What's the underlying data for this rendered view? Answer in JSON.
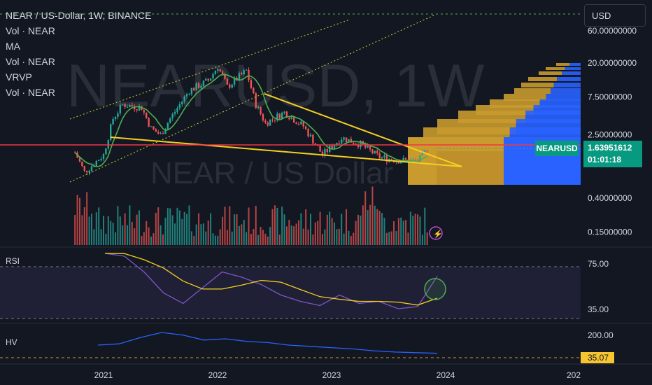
{
  "header": {
    "title": "NEAR / US-Dollar, 1W, BINANCE",
    "indicators": [
      "Vol · NEAR",
      "MA",
      "Vol · NEAR",
      "VRVP",
      "Vol · NEAR"
    ]
  },
  "currency_button": "USD",
  "watermark": {
    "symbol": "NEARUSD, 1W",
    "name": "NEAR / US Dollar"
  },
  "price_badge": {
    "symbol": "NEARUSD",
    "price": "1.63951612",
    "countdown": "01:01:18"
  },
  "rsi_label": "RSI",
  "hv_label": "HV",
  "colors": {
    "background": "#131722",
    "up": "#26a69a",
    "down": "#ef5350",
    "ma": "#4caf50",
    "trendline": "#f5d020",
    "channel": "#c6d33a",
    "rsi": "#7e57c2",
    "rsi_ma": "#f5d020",
    "hv": "#2962ff",
    "vrvp_up": "#2962ff",
    "vrvp_down": "#c99a2e"
  },
  "chart_data": [
    {
      "type": "candlestick",
      "title": "NEAR / US-Dollar, 1W, BINANCE",
      "price_scale": "log",
      "y_ticks": [
        "20.00000000",
        "7.50000000",
        "2.50000000",
        "0.40000000",
        "0.15000000"
      ],
      "x_ticks": [
        "2021",
        "2022",
        "2023",
        "2024",
        "202"
      ],
      "last_price": 1.63951612,
      "approx_path": [
        {
          "t": "2020-10",
          "close": 1.5
        },
        {
          "t": "2020-11",
          "close": 0.85
        },
        {
          "t": "2021-01",
          "close": 1.4
        },
        {
          "t": "2021-02",
          "close": 4.0
        },
        {
          "t": "2021-03",
          "close": 6.0
        },
        {
          "t": "2021-05",
          "close": 5.5
        },
        {
          "t": "2021-06",
          "close": 3.0
        },
        {
          "t": "2021-07",
          "close": 2.5
        },
        {
          "t": "2021-08",
          "close": 4.0
        },
        {
          "t": "2021-10",
          "close": 9.0
        },
        {
          "t": "2021-12",
          "close": 12.0
        },
        {
          "t": "2022-01",
          "close": 18.0
        },
        {
          "t": "2022-02",
          "close": 10.0
        },
        {
          "t": "2022-04",
          "close": 16.0
        },
        {
          "t": "2022-05",
          "close": 6.0
        },
        {
          "t": "2022-06",
          "close": 3.5
        },
        {
          "t": "2022-08",
          "close": 4.8
        },
        {
          "t": "2022-10",
          "close": 3.2
        },
        {
          "t": "2022-12",
          "close": 1.4
        },
        {
          "t": "2023-02",
          "close": 2.3
        },
        {
          "t": "2023-04",
          "close": 1.9
        },
        {
          "t": "2023-06",
          "close": 1.3
        },
        {
          "t": "2023-08",
          "close": 1.2
        },
        {
          "t": "2023-10",
          "close": 1.15
        },
        {
          "t": "2023-11",
          "close": 1.64
        }
      ],
      "volume": "bars below price"
    },
    {
      "type": "line",
      "name": "RSI",
      "y_ticks": [
        "75.00",
        "35.00"
      ],
      "approx_values": [
        90,
        85,
        70,
        50,
        40,
        55,
        70,
        65,
        58,
        48,
        42,
        38,
        48,
        40,
        42,
        35,
        37,
        66
      ]
    },
    {
      "type": "line",
      "name": "HV",
      "y_ticks": [
        "200.00"
      ],
      "last_value": "35.07",
      "approx_values": [
        100,
        110,
        160,
        200,
        180,
        140,
        150,
        130,
        120,
        100,
        90,
        80,
        70,
        55,
        45,
        40,
        35
      ]
    }
  ]
}
